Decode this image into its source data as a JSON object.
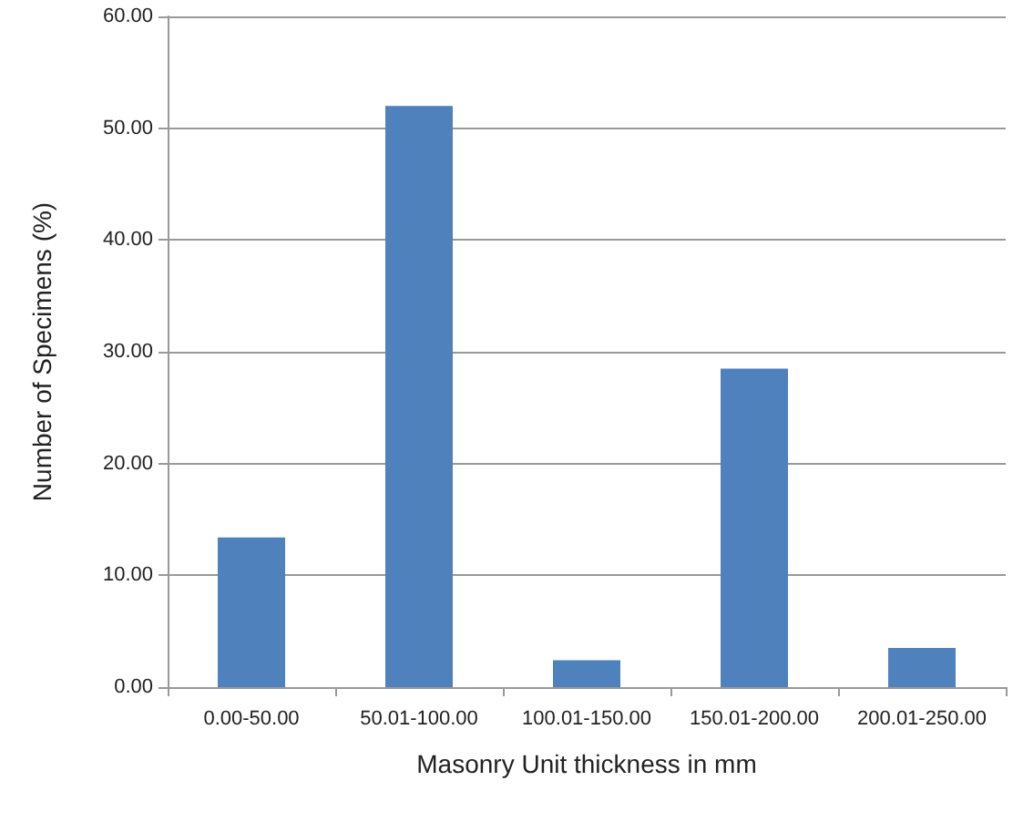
{
  "chart_data": {
    "type": "bar",
    "categories": [
      "0.00-50.00",
      "50.01-100.00",
      "100.01-150.00",
      "150.01-200.00",
      "200.01-250.00"
    ],
    "values": [
      13.4,
      52.0,
      2.4,
      28.5,
      3.5
    ],
    "color": "#4f81bd",
    "xlabel": "Masonry Unit thickness in mm",
    "ylabel": "Number of Specimens (%)",
    "ylim": [
      0,
      60
    ],
    "yticks": [
      {
        "value": 0,
        "label": "0.00"
      },
      {
        "value": 10,
        "label": "10.00"
      },
      {
        "value": 20,
        "label": "20.00"
      },
      {
        "value": 30,
        "label": "30.00"
      },
      {
        "value": 40,
        "label": "40.00"
      },
      {
        "value": 50,
        "label": "50.00"
      },
      {
        "value": 60,
        "label": "60.00"
      }
    ],
    "grid": "y"
  }
}
